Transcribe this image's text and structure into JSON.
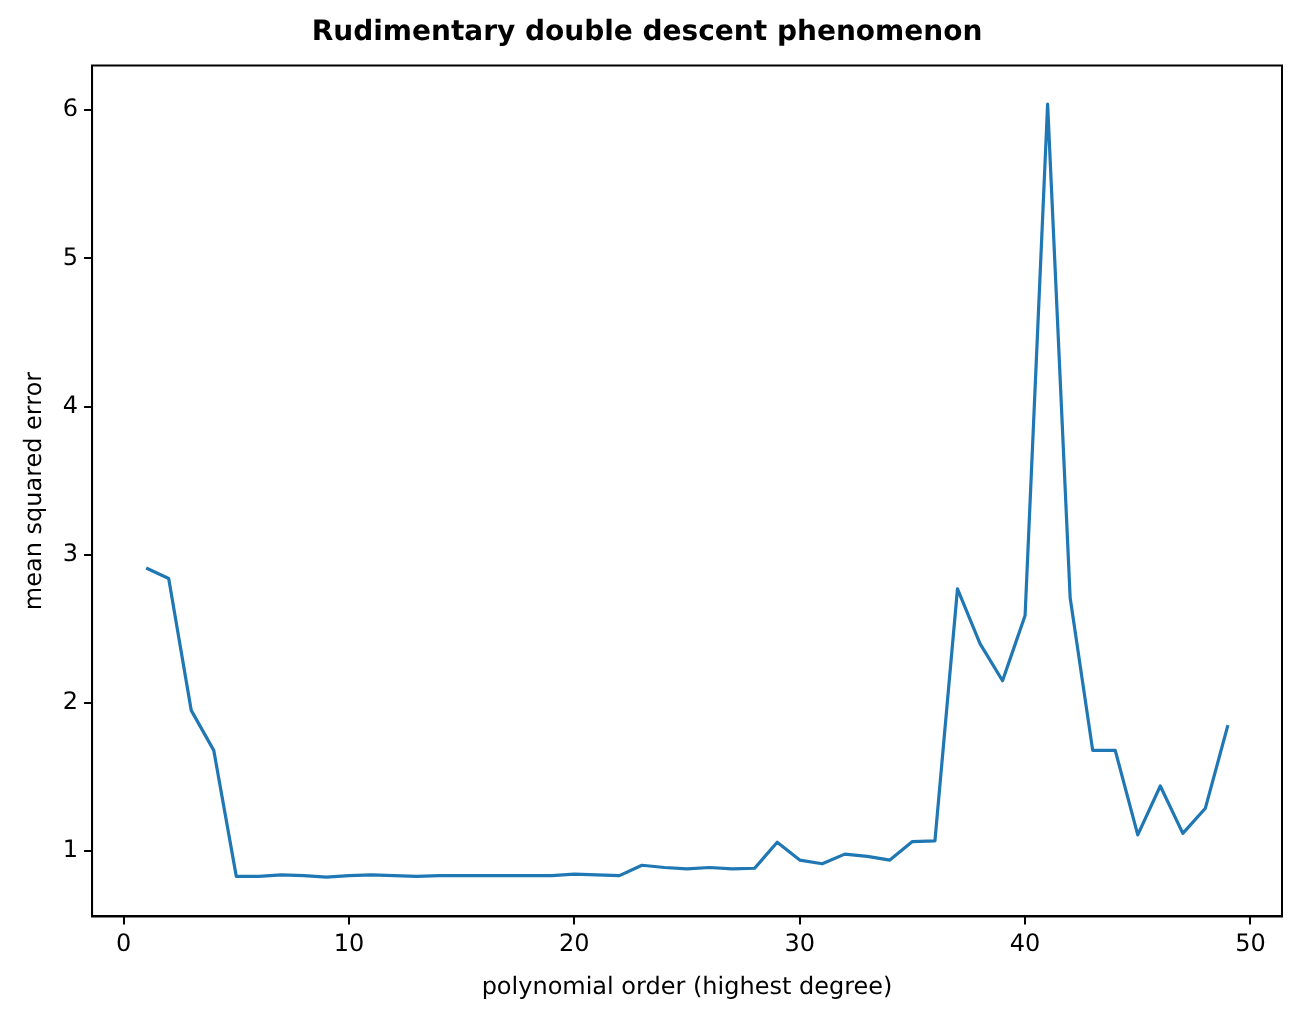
{
  "chart_data": {
    "type": "line",
    "title": "Rudimentary double descent phenomenon",
    "xlabel": "polynomial order (highest degree)",
    "ylabel": "mean squared error",
    "x": [
      1,
      2,
      3,
      4,
      5,
      6,
      7,
      8,
      9,
      10,
      11,
      12,
      13,
      14,
      15,
      16,
      17,
      18,
      19,
      20,
      21,
      22,
      23,
      24,
      25,
      26,
      27,
      28,
      29,
      30,
      31,
      32,
      33,
      34,
      35,
      36,
      37,
      38,
      39,
      40,
      41,
      42,
      43,
      44,
      45,
      46,
      47,
      48,
      49
    ],
    "series": [
      {
        "color": "#1f77b4",
        "values": [
          2.91,
          2.84,
          1.95,
          1.68,
          0.83,
          0.83,
          0.84,
          0.835,
          0.825,
          0.835,
          0.84,
          0.835,
          0.83,
          0.835,
          0.835,
          0.835,
          0.835,
          0.835,
          0.835,
          0.845,
          0.84,
          0.835,
          0.905,
          0.89,
          0.88,
          0.89,
          0.88,
          0.885,
          1.06,
          0.94,
          0.915,
          0.98,
          0.965,
          0.94,
          1.065,
          1.07,
          2.77,
          2.4,
          2.15,
          2.59,
          6.04,
          2.71,
          1.68,
          1.68,
          1.11,
          1.44,
          1.12,
          1.29,
          1.85
        ]
      }
    ],
    "xlim": [
      -1.4,
      51.4
    ],
    "xticks": [
      0,
      10,
      20,
      30,
      40,
      50
    ],
    "ylim": [
      0.56,
      6.3
    ],
    "yticks": [
      1,
      2,
      3,
      4,
      5,
      6
    ],
    "grid": false,
    "legend": false,
    "marker": "none",
    "line_style": "solid"
  }
}
